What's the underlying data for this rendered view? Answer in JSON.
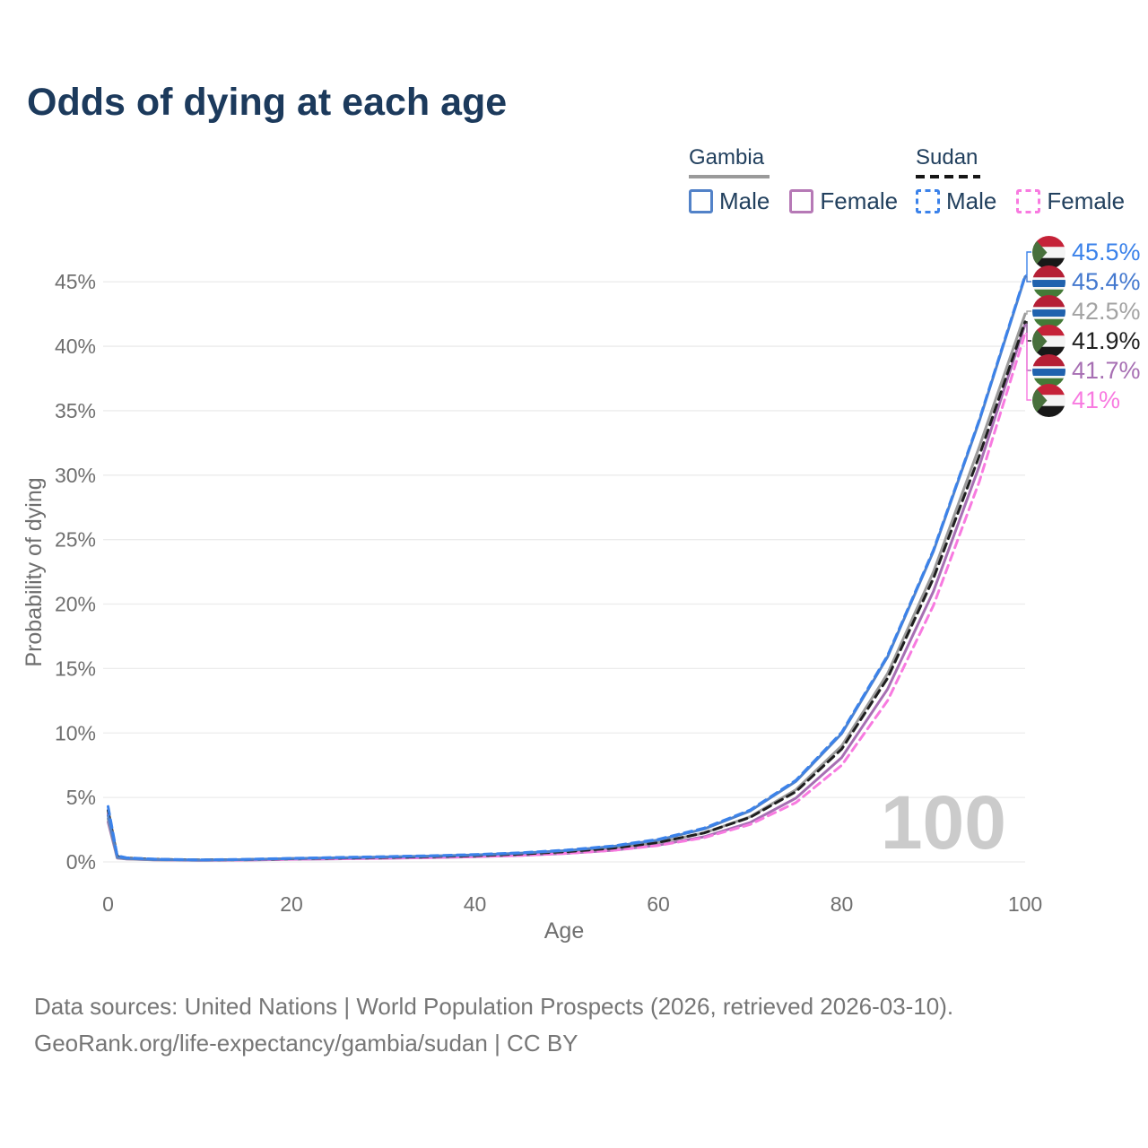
{
  "title": "Odds of dying at each age",
  "legend": {
    "gambia": {
      "name": "Gambia",
      "male": "Male",
      "female": "Female"
    },
    "sudan": {
      "name": "Sudan",
      "male": "Male",
      "female": "Female"
    }
  },
  "watermark": "100",
  "footer": {
    "line1": "Data sources: United Nations | World Population Prospects (2026, retrieved 2026-03-10).",
    "line2": "GeoRank.org/life-expectancy/gambia/sudan | CC BY"
  },
  "chart_data": {
    "type": "line",
    "title": "Odds of dying at each age",
    "xlabel": "Age",
    "ylabel": "Probability of dying",
    "xlim": [
      0,
      100
    ],
    "ylim": [
      0,
      47
    ],
    "grid": "horizontal-only",
    "legend_position": "top-right",
    "x_tick_values": [
      0,
      20,
      40,
      60,
      80,
      100
    ],
    "x_tick_labels": [
      "0",
      "20",
      "40",
      "60",
      "80",
      "100"
    ],
    "y_tick_values": [
      0,
      5,
      10,
      15,
      20,
      25,
      30,
      35,
      40,
      45
    ],
    "y_tick_labels": [
      "0%",
      "5%",
      "10%",
      "15%",
      "20%",
      "25%",
      "30%",
      "35%",
      "40%",
      "45%"
    ],
    "age_indicator": "100",
    "ages": [
      0,
      1,
      2,
      5,
      10,
      15,
      20,
      25,
      30,
      35,
      40,
      45,
      50,
      55,
      60,
      65,
      70,
      75,
      80,
      85,
      90,
      95,
      100
    ],
    "series": [
      {
        "id": "gambia-female",
        "name": "Gambia Female",
        "country": "Gambia",
        "sex": "Female",
        "color": "#a76fb3",
        "dashed": false,
        "end_value": 41.7,
        "values": [
          3.1,
          0.3,
          0.22,
          0.15,
          0.12,
          0.14,
          0.2,
          0.24,
          0.28,
          0.33,
          0.4,
          0.5,
          0.66,
          0.9,
          1.3,
          1.95,
          3.05,
          4.95,
          8.1,
          13.4,
          21.0,
          30.7,
          41.7
        ]
      },
      {
        "id": "gambia",
        "name": "Gambia (both sexes)",
        "country": "Gambia",
        "sex": "Both",
        "color": "#9b9b9b",
        "dashed": false,
        "end_value": 42.5,
        "values": [
          3.35,
          0.33,
          0.24,
          0.17,
          0.13,
          0.16,
          0.23,
          0.28,
          0.33,
          0.39,
          0.47,
          0.59,
          0.77,
          1.05,
          1.5,
          2.24,
          3.5,
          5.6,
          9.0,
          14.6,
          22.5,
          32.2,
          42.5
        ]
      },
      {
        "id": "sudan-female",
        "name": "Sudan Female",
        "country": "Sudan",
        "sex": "Female",
        "color": "#f87ae0",
        "dashed": true,
        "end_value": 41.0,
        "values": [
          3.7,
          0.4,
          0.28,
          0.18,
          0.13,
          0.15,
          0.21,
          0.25,
          0.29,
          0.34,
          0.41,
          0.51,
          0.66,
          0.89,
          1.27,
          1.88,
          2.9,
          4.6,
          7.5,
          12.5,
          19.9,
          29.5,
          41.0
        ]
      },
      {
        "id": "sudan",
        "name": "Sudan (both sexes)",
        "country": "Sudan",
        "sex": "Both",
        "color": "#1f1f1f",
        "dashed": true,
        "end_value": 41.9,
        "values": [
          4.0,
          0.44,
          0.3,
          0.2,
          0.15,
          0.18,
          0.25,
          0.3,
          0.35,
          0.41,
          0.49,
          0.61,
          0.79,
          1.06,
          1.51,
          2.25,
          3.45,
          5.45,
          8.75,
          14.25,
          22.0,
          31.5,
          41.9
        ]
      },
      {
        "id": "gambia-male",
        "name": "Gambia Male",
        "country": "Gambia",
        "sex": "Male",
        "color": "#5282c8",
        "dashed": false,
        "end_value": 45.4,
        "values": [
          3.6,
          0.36,
          0.26,
          0.18,
          0.14,
          0.18,
          0.26,
          0.32,
          0.38,
          0.45,
          0.54,
          0.68,
          0.88,
          1.2,
          1.7,
          2.55,
          3.95,
          6.25,
          9.95,
          15.9,
          24.1,
          34.2,
          45.4
        ]
      },
      {
        "id": "sudan-male",
        "name": "Sudan Male",
        "country": "Sudan",
        "sex": "Male",
        "color": "#3b82ea",
        "dashed": true,
        "end_value": 45.5,
        "values": [
          4.3,
          0.48,
          0.32,
          0.22,
          0.16,
          0.2,
          0.28,
          0.35,
          0.41,
          0.48,
          0.57,
          0.71,
          0.92,
          1.24,
          1.75,
          2.62,
          4.02,
          6.33,
          10.05,
          16.0,
          24.2,
          34.3,
          45.5
        ]
      }
    ],
    "end_labels": [
      {
        "series": "sudan-male",
        "text": "45.5%",
        "value": 45.5,
        "color": "#3b82ea",
        "flag": "sudan"
      },
      {
        "series": "gambia-male",
        "text": "45.4%",
        "value": 45.4,
        "color": "#4479cf",
        "flag": "gambia"
      },
      {
        "series": "gambia",
        "text": "42.5%",
        "value": 42.5,
        "color": "#a3a3a3",
        "flag": "gambia"
      },
      {
        "series": "sudan",
        "text": "41.9%",
        "value": 41.9,
        "color": "#1f1f1f",
        "flag": "sudan"
      },
      {
        "series": "gambia-female",
        "text": "41.7%",
        "value": 41.7,
        "color": "#a76fb3",
        "flag": "gambia"
      },
      {
        "series": "sudan-female",
        "text": "41%",
        "value": 41.0,
        "color": "#f87ae0",
        "flag": "sudan"
      }
    ],
    "flag_colors": {
      "sudan": {
        "red": "#c52238",
        "white": "#f4f4f4",
        "black": "#181818",
        "green": "#48703c"
      },
      "gambia": {
        "red": "#b51f35",
        "white": "#f4f4f4",
        "blue": "#2062ae",
        "green": "#447a37"
      }
    }
  }
}
